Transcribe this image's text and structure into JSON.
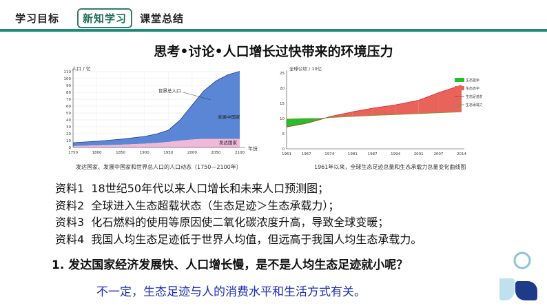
{
  "nav": {
    "items": [
      {
        "label": "学习目标"
      },
      {
        "label": "新知学习"
      },
      {
        "label": "课堂总结"
      }
    ],
    "active_index": 1,
    "accent": "#1f8a78"
  },
  "page_title": "思考•讨论•人口增长过快带来的环境压力",
  "chart_data": [
    {
      "type": "area",
      "ylabel": "人口 / 亿",
      "xlabel": "年份",
      "caption": "发达国家、发展中国家和世界总人口的人口动态（1750—2100年）",
      "x_ticks": [
        1750,
        1800,
        1850,
        1900,
        1950,
        2000,
        2050,
        2100
      ],
      "y_ticks": [
        0,
        10,
        20,
        30,
        40,
        50,
        60,
        70,
        80,
        90,
        100,
        110
      ],
      "ylim": [
        0,
        110
      ],
      "xlim": [
        1750,
        2100
      ],
      "annotations": [
        "世界总人口",
        "发展中国家",
        "发达国家"
      ],
      "x": [
        1750,
        1800,
        1850,
        1900,
        1925,
        1950,
        1975,
        2000,
        2025,
        2050,
        2075,
        2100
      ],
      "series": [
        {
          "name": "发达国家",
          "color": "#f2b8d8",
          "values": [
            2,
            3,
            4,
            5.5,
            6.5,
            8,
            10,
            11.5,
            12.5,
            12.5,
            12.5,
            12.5
          ]
        },
        {
          "name": "发展中国家",
          "color": "#5b86d6",
          "values": [
            5,
            6,
            8,
            10.5,
            13,
            17,
            30,
            50,
            70,
            84,
            93,
            98
          ]
        }
      ]
    },
    {
      "type": "line",
      "ylabel": "全球公顷 / 10亿",
      "caption": "1961年以来，全球生态足迹总量和生态承载力总量变化曲线图",
      "x_ticks": [
        1961,
        1967,
        1974,
        1981,
        1987,
        1994,
        2001,
        2007,
        2014
      ],
      "y_ticks": [
        0,
        5,
        10,
        15,
        20,
        25
      ],
      "ylim": [
        0,
        25
      ],
      "xlim": [
        1961,
        2014
      ],
      "legend": [
        "生态盈余",
        "生态赤字",
        "生态足迹总量",
        "生态承载力总量"
      ],
      "legend_colors": [
        "#22c02a",
        "#e8645a",
        "#d92b2b",
        "#7a9a2a"
      ],
      "x": [
        1961,
        1967,
        1971,
        1974,
        1981,
        1987,
        1994,
        2001,
        2007,
        2014
      ],
      "footprint": [
        7.2,
        8.4,
        9.6,
        10.6,
        12.2,
        13.4,
        14.5,
        16.0,
        18.5,
        21.0
      ],
      "biocapacity": [
        9.8,
        10.0,
        10.0,
        10.3,
        10.7,
        11.0,
        11.3,
        11.6,
        11.9,
        12.2
      ]
    }
  ],
  "sources": [
    {
      "label": "资料1",
      "text": "18世纪50年代以来人口增长和未来人口预测图；"
    },
    {
      "label": "资料2",
      "text": "全球进入生态超载状态（生态足迹＞生态承载力）；"
    },
    {
      "label": "资料3",
      "text": "化石燃料的使用等原因使二氧化碳浓度升高，导致全球变暖；"
    },
    {
      "label": "资料4",
      "text": "我国人均生态足迹低于世界人均值，但远高于我国人均生态承载力。"
    }
  ],
  "question": "1. 发达国家经济发展快、人口增长慢，是不是人均生态足迹就小呢？",
  "answer": "不一定，生态足迹与人的消费水平和生活方式有关。"
}
